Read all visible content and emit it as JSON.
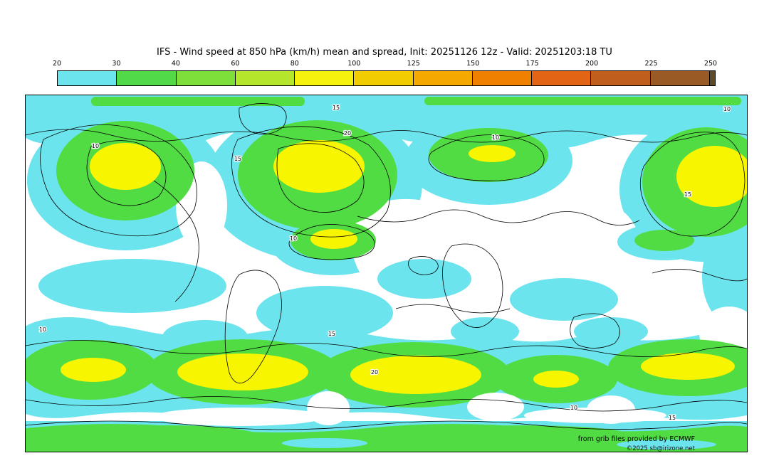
{
  "title": "IFS - Wind speed at 850 hPa (km/h) mean and spread, Init: 20251126 12z - Valid: 20251203:18 TU",
  "colorbar": {
    "ticks": [
      "20",
      "30",
      "40",
      "60",
      "80",
      "100",
      "125",
      "150",
      "175",
      "200",
      "225",
      "250"
    ],
    "segment_colors": [
      "#6ce4ee",
      "#52d948",
      "#7ede3a",
      "#b4e72b",
      "#f6f20e",
      "#f0cc00",
      "#f5a800",
      "#ef8000",
      "#e36414",
      "#c05e1e",
      "#9a5a26",
      "#5c4a28"
    ]
  },
  "map": {
    "contour_labels": [
      "15",
      "10",
      "20",
      "10",
      "15",
      "10",
      "15",
      "10",
      "15",
      "10",
      "15",
      "20",
      "10"
    ],
    "attribution_line1": "from grib files provided by ECMWF",
    "attribution_line2": "©2025 sb@irizone.net",
    "palette": {
      "low_cyan": "#6ce4ee",
      "mid_green": "#52dc44",
      "high_yellow": "#f8f500",
      "background": "#ffffff",
      "contour": "#000000"
    }
  }
}
